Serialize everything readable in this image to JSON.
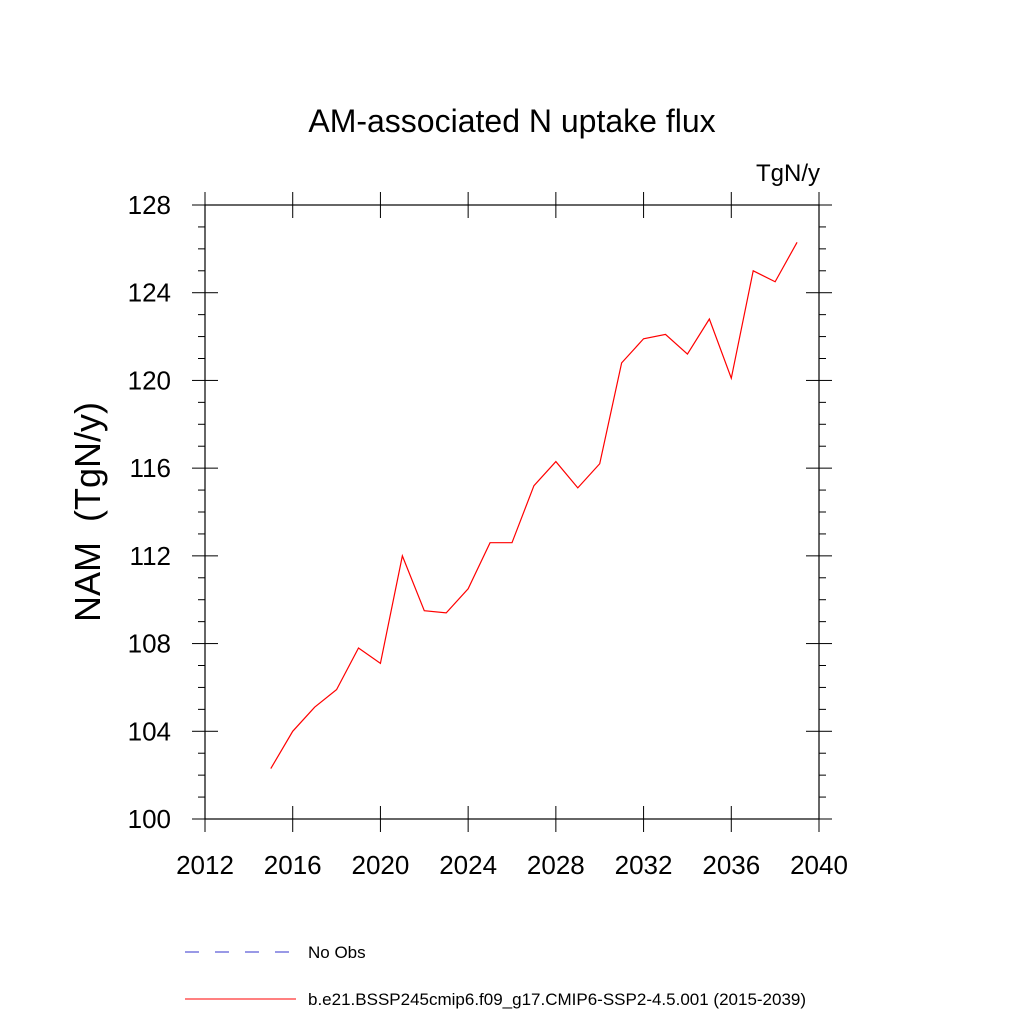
{
  "chart_data": {
    "type": "line",
    "title": "AM-associated N uptake flux",
    "units_label": "TgN/y",
    "ylabel": "NAM  (TgN/y)",
    "xlabel": "",
    "xlim": [
      2012,
      2040
    ],
    "ylim": [
      100,
      128
    ],
    "x_ticks": [
      2012,
      2016,
      2020,
      2024,
      2028,
      2032,
      2036,
      2040
    ],
    "y_ticks": [
      100,
      104,
      108,
      112,
      116,
      120,
      124,
      128
    ],
    "x_ticks_labels": [
      "2012",
      "2016",
      "2020",
      "2024",
      "2028",
      "2032",
      "2036",
      "2040"
    ],
    "y_ticks_labels": [
      "100",
      "104",
      "108",
      "112",
      "116",
      "120",
      "124",
      "128"
    ],
    "grid": false,
    "legend_position": "bottom",
    "series": [
      {
        "name": "No Obs",
        "color": "#3333cc",
        "style": "dashed",
        "x": [],
        "y": []
      },
      {
        "name": "b.e21.BSSP245cmip6.f09_g17.CMIP6-SSP2-4.5.001 (2015-2039)",
        "color": "#ff0000",
        "style": "solid",
        "x": [
          2015,
          2016,
          2017,
          2018,
          2019,
          2020,
          2021,
          2022,
          2023,
          2024,
          2025,
          2026,
          2027,
          2028,
          2029,
          2030,
          2031,
          2032,
          2033,
          2034,
          2035,
          2036,
          2037,
          2038,
          2039
        ],
        "y": [
          102.3,
          104.0,
          105.1,
          105.9,
          107.8,
          107.1,
          112.0,
          109.5,
          109.4,
          110.5,
          112.6,
          112.6,
          115.2,
          116.3,
          115.1,
          116.2,
          120.8,
          121.9,
          122.1,
          121.2,
          122.8,
          120.1,
          125.0,
          124.5,
          126.3
        ]
      }
    ]
  }
}
